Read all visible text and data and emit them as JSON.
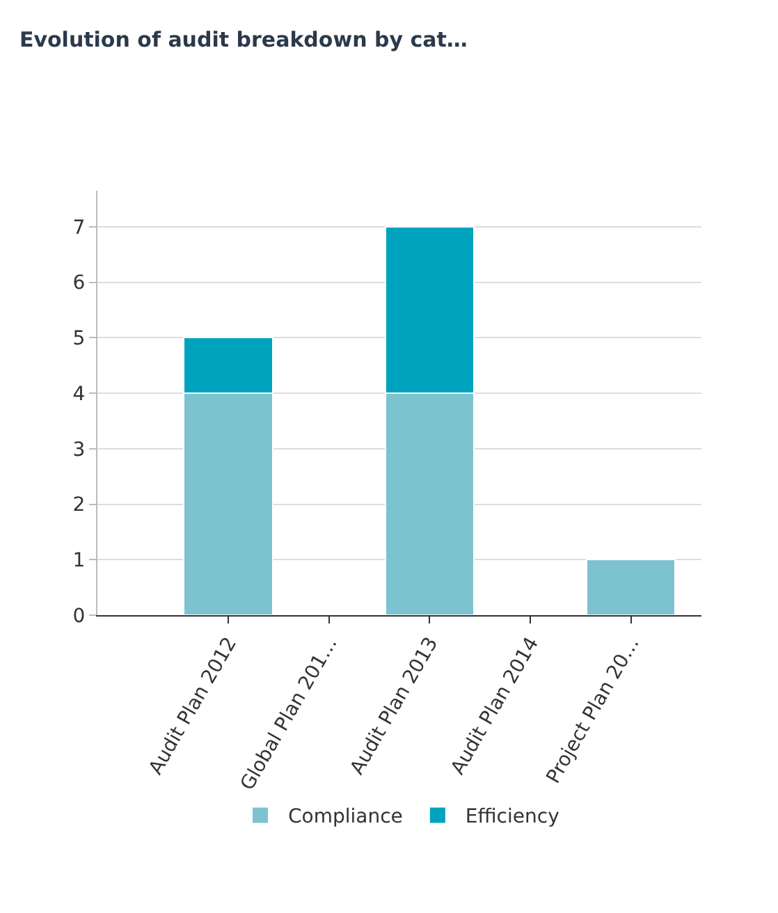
{
  "chart_data": {
    "type": "bar",
    "title": "Evolution of audit breakdown by cat…",
    "stacked": true,
    "categories": [
      "Audit Plan 2012",
      "Global Plan 201…",
      "Audit Plan 2013",
      "Audit Plan 2014",
      "Project Plan 20…"
    ],
    "series": [
      {
        "name": "Compliance",
        "color": "#7cc3cf",
        "values": [
          4,
          0,
          4,
          0,
          1
        ]
      },
      {
        "name": "Efficiency",
        "color": "#00a3be",
        "values": [
          1,
          0,
          3,
          0,
          0
        ]
      }
    ],
    "ylim": [
      0,
      7.65
    ],
    "yticks": [
      0,
      1,
      2,
      3,
      4,
      5,
      6,
      7
    ],
    "grid": "y",
    "legend": "bottom"
  }
}
